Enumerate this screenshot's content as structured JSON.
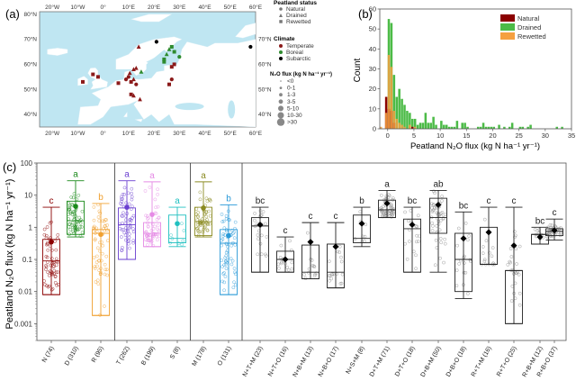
{
  "chart_data": [
    {
      "panel": "(a)",
      "type": "map",
      "lon_ticks": [
        "20°W",
        "10°W",
        "0°",
        "10°E",
        "20°E",
        "30°E",
        "40°E",
        "50°E",
        "60°E"
      ],
      "lat_ticks": [
        "80°N",
        "70°N",
        "60°N",
        "50°N",
        "40°N"
      ],
      "colors": {
        "ocean": "#bfe6f2",
        "land": "#ffffff",
        "temperate": "#8b1a1a",
        "boreal": "#2e8b2e",
        "subarctic": "#000000"
      },
      "legend": {
        "status_title": "Peatland status",
        "status": [
          "Natural",
          "Drained",
          "Rewetted"
        ],
        "climate_title": "Climate",
        "climate": [
          "Temperate",
          "Boreal",
          "Subarctic"
        ],
        "flux_title": "N₂O flux (kg N ha⁻¹ yr⁻¹)",
        "flux_classes": [
          "<0",
          "0-1",
          "1-3",
          "3-5",
          "5-10",
          "10-30",
          ">30"
        ]
      },
      "sites": [
        {
          "lon": -8,
          "lat": 53,
          "climate": "temperate",
          "shape": "square"
        },
        {
          "lon": -4,
          "lat": 56,
          "climate": "temperate",
          "shape": "square"
        },
        {
          "lon": -2,
          "lat": 55,
          "climate": "temperate",
          "shape": "square"
        },
        {
          "lon": 6,
          "lat": 52.5,
          "climate": "temperate",
          "shape": "square"
        },
        {
          "lon": 9,
          "lat": 54,
          "climate": "temperate",
          "shape": "circle"
        },
        {
          "lon": 10,
          "lat": 55,
          "climate": "temperate",
          "shape": "circle"
        },
        {
          "lon": 10.5,
          "lat": 56.5,
          "climate": "temperate",
          "shape": "triangle"
        },
        {
          "lon": 11,
          "lat": 53,
          "climate": "temperate",
          "shape": "square"
        },
        {
          "lon": 12,
          "lat": 54,
          "climate": "temperate",
          "shape": "triangle"
        },
        {
          "lon": 13,
          "lat": 52,
          "climate": "temperate",
          "shape": "circle"
        },
        {
          "lon": 11,
          "lat": 48,
          "climate": "temperate",
          "shape": "square"
        },
        {
          "lon": 12,
          "lat": 47.5,
          "climate": "temperate",
          "shape": "triangle"
        },
        {
          "lon": 14.5,
          "lat": 46,
          "climate": "temperate",
          "shape": "triangle"
        },
        {
          "lon": 12,
          "lat": 58,
          "climate": "temperate",
          "shape": "triangle"
        },
        {
          "lon": 13,
          "lat": 58.5,
          "climate": "temperate",
          "shape": "triangle"
        },
        {
          "lon": 14,
          "lat": 67,
          "climate": "temperate",
          "shape": "triangle"
        },
        {
          "lon": 15,
          "lat": 57,
          "climate": "boreal",
          "shape": "triangle"
        },
        {
          "lon": 24,
          "lat": 62,
          "climate": "boreal",
          "shape": "square"
        },
        {
          "lon": 25,
          "lat": 64,
          "climate": "boreal",
          "shape": "triangle"
        },
        {
          "lon": 26,
          "lat": 66,
          "climate": "boreal",
          "shape": "triangle"
        },
        {
          "lon": 27,
          "lat": 67,
          "climate": "boreal",
          "shape": "square"
        },
        {
          "lon": 28,
          "lat": 65,
          "climate": "boreal",
          "shape": "square"
        },
        {
          "lon": 24,
          "lat": 61,
          "climate": "boreal",
          "shape": "square"
        },
        {
          "lon": 30,
          "lat": 63,
          "climate": "boreal",
          "shape": "circle"
        },
        {
          "lon": 27,
          "lat": 59,
          "climate": "temperate",
          "shape": "square"
        },
        {
          "lon": 28,
          "lat": 60,
          "climate": "temperate",
          "shape": "square"
        },
        {
          "lon": 26,
          "lat": 52,
          "climate": "temperate",
          "shape": "square"
        },
        {
          "lon": 27,
          "lat": 54,
          "climate": "temperate",
          "shape": "circle"
        },
        {
          "lon": 21,
          "lat": 69,
          "climate": "subarctic",
          "shape": "circle"
        },
        {
          "lon": 58,
          "lat": 67,
          "climate": "subarctic",
          "shape": "circle"
        }
      ]
    },
    {
      "panel": "(b)",
      "type": "bar",
      "stacked": false,
      "xlabel": "Peatland N₂O flux (kg N ha⁻¹ yr⁻¹)",
      "ylabel": "Count",
      "xlim": [
        -1.5,
        35
      ],
      "ylim": [
        0,
        60
      ],
      "xticks": [
        0,
        5,
        10,
        15,
        20,
        25,
        30,
        35
      ],
      "yticks": [
        0,
        10,
        20,
        30,
        40,
        50,
        60
      ],
      "legend_position": "top-right",
      "bin_width": 0.5,
      "series": [
        {
          "name": "Natural",
          "color": "#8b0000",
          "bins": [
            [
              -0.5,
              16
            ],
            [
              0,
              10
            ],
            [
              0.5,
              9
            ],
            [
              1,
              3
            ],
            [
              4.5,
              1
            ]
          ]
        },
        {
          "name": "Drained",
          "color": "#4cbb47",
          "bins": [
            [
              0,
              55
            ],
            [
              0.5,
              53
            ],
            [
              1,
              27
            ],
            [
              1.5,
              16
            ],
            [
              2,
              20
            ],
            [
              2.5,
              15
            ],
            [
              3,
              12
            ],
            [
              3.5,
              9
            ],
            [
              4,
              8
            ],
            [
              4.5,
              5
            ],
            [
              5,
              5
            ],
            [
              5.5,
              2
            ],
            [
              6,
              3
            ],
            [
              6.5,
              3
            ],
            [
              7,
              8
            ],
            [
              7.5,
              3
            ],
            [
              8,
              3
            ],
            [
              8.5,
              6
            ],
            [
              9,
              2
            ],
            [
              10,
              4
            ],
            [
              10.5,
              2
            ],
            [
              11,
              2
            ],
            [
              11.5,
              1
            ],
            [
              12,
              1
            ],
            [
              12.5,
              1
            ],
            [
              13,
              4
            ],
            [
              14,
              3
            ],
            [
              14.5,
              3
            ],
            [
              15,
              1
            ],
            [
              17,
              1
            ],
            [
              17.5,
              1
            ],
            [
              18,
              3
            ],
            [
              18.5,
              1
            ],
            [
              19,
              1
            ],
            [
              19.5,
              1
            ],
            [
              20,
              1
            ],
            [
              21,
              2
            ],
            [
              22,
              1
            ],
            [
              23,
              1
            ],
            [
              23.5,
              3
            ],
            [
              25,
              1
            ],
            [
              25.5,
              1
            ],
            [
              26.5,
              1
            ],
            [
              27,
              2
            ],
            [
              32,
              1
            ],
            [
              33,
              1
            ]
          ]
        },
        {
          "name": "Rewetted",
          "color": "#f5a040",
          "bins": [
            [
              -1.5,
              1
            ],
            [
              -0.5,
              8
            ],
            [
              0,
              37
            ],
            [
              0.5,
              31
            ],
            [
              1,
              9
            ],
            [
              1.5,
              5
            ],
            [
              2,
              3
            ],
            [
              2.5,
              2
            ],
            [
              3,
              1
            ],
            [
              4,
              2
            ],
            [
              5,
              1
            ]
          ]
        }
      ]
    },
    {
      "panel": "(c)",
      "type": "box",
      "ylabel": "Peatland N₂O flux (kg N ha⁻¹ yr⁻¹)",
      "yscale": "log",
      "ylim": [
        0.0003,
        100
      ],
      "yticks": [
        "0.001",
        "0.01",
        "0.1",
        "1",
        "10",
        "100"
      ],
      "groups": [
        {
          "label": "N (74)",
          "color": "#8b0000",
          "letter": "c",
          "min": 0.008,
          "q1": 0.008,
          "median": 0.09,
          "q3": 0.42,
          "max": 4.2,
          "mean": 0.35
        },
        {
          "label": "D (310)",
          "color": "#1a8a1a",
          "letter": "a",
          "min": 0.5,
          "q1": 0.6,
          "median": 1.6,
          "q3": 6.5,
          "max": 28,
          "mean": 4.5
        },
        {
          "label": "R (95)",
          "color": "#f0a030",
          "letter": "b",
          "min": 0.0018,
          "q1": 0.0018,
          "median": 0.65,
          "q3": 0.85,
          "max": 5.5,
          "mean": 0.6
        },
        {
          "label": "T (262)",
          "color": "#6a3fd0",
          "letter": "a",
          "min": 0.1,
          "q1": 0.1,
          "median": 1.2,
          "q3": 4,
          "max": 28,
          "mean": 4.2
        },
        {
          "label": "B (199)",
          "color": "#e58ae5",
          "letter": "a",
          "min": 0.25,
          "q1": 0.25,
          "median": 0.65,
          "q3": 1.4,
          "max": 26,
          "mean": 2.5
        },
        {
          "label": "S (8)",
          "color": "#20c0c0",
          "letter": "a",
          "min": 0.25,
          "q1": 0.33,
          "median": 0.45,
          "q3": 2.4,
          "max": 4.2,
          "mean": 1.3
        },
        {
          "label": "M (178)",
          "color": "#8a8a20",
          "letter": "a",
          "min": 0.5,
          "q1": 0.55,
          "median": 1.5,
          "q3": 4.2,
          "max": 26,
          "mean": 4
        },
        {
          "label": "O (131)",
          "color": "#2a9ad8",
          "letter": "b",
          "min": 0.008,
          "q1": 0.008,
          "median": 0.32,
          "q3": 0.85,
          "max": 5,
          "mean": 0.55
        },
        {
          "label": "N+T+M (23)",
          "color": "#222222",
          "letter": "bc",
          "min": 0.04,
          "q1": 0.04,
          "median": 1.1,
          "q3": 2,
          "max": 4.2,
          "mean": 1.2
        },
        {
          "label": "N+T+O (16)",
          "color": "#222222",
          "letter": "c",
          "min": 0.04,
          "q1": 0.04,
          "median": 0.1,
          "q3": 0.18,
          "max": 0.5,
          "mean": 0.1
        },
        {
          "label": "N+B+M (13)",
          "color": "#222222",
          "letter": "c",
          "min": 0.025,
          "q1": 0.025,
          "median": 0.04,
          "q3": 0.28,
          "max": 1.4,
          "mean": 0.35
        },
        {
          "label": "N+B+O (17)",
          "color": "#222222",
          "letter": "c",
          "min": 0.013,
          "q1": 0.013,
          "median": 0.04,
          "q3": 0.3,
          "max": 1.4,
          "mean": 0.25
        },
        {
          "label": "N+S+M (8)",
          "color": "#222222",
          "letter": "b",
          "min": 0.25,
          "q1": 0.33,
          "median": 0.45,
          "q3": 2.4,
          "max": 4.2,
          "mean": 1.3
        },
        {
          "label": "D+T+M (71)",
          "color": "#222222",
          "letter": "a",
          "min": 2,
          "q1": 2,
          "median": 3.5,
          "q3": 7,
          "max": 14,
          "mean": 5.5
        },
        {
          "label": "D+T+O (18)",
          "color": "#222222",
          "letter": "bc",
          "min": 0.04,
          "q1": 0.04,
          "median": 0.9,
          "q3": 1.8,
          "max": 4.2,
          "mean": 1.2
        },
        {
          "label": "D+B+M (50)",
          "color": "#222222",
          "letter": "ab",
          "min": 0.04,
          "q1": 0.65,
          "median": 2,
          "q3": 8,
          "max": 14,
          "mean": 5
        },
        {
          "label": "D+B+O (18)",
          "color": "#222222",
          "letter": "bc",
          "min": 0.006,
          "q1": 0.01,
          "median": 0.1,
          "q3": 0.65,
          "max": 3,
          "mean": 0.45
        },
        {
          "label": "R+T+M (16)",
          "color": "#222222",
          "letter": "c",
          "min": 0.07,
          "q1": 0.07,
          "median": 0.07,
          "q3": 1,
          "max": 4.2,
          "mean": 0.7
        },
        {
          "label": "R+T+O (25)",
          "color": "#222222",
          "letter": "c",
          "min": 0.001,
          "q1": 0.001,
          "median": 0.045,
          "q3": 0.045,
          "max": 4.2,
          "mean": 0.27
        },
        {
          "label": "R+B+M (12)",
          "color": "#222222",
          "letter": "bc",
          "min": 0.3,
          "q1": 0.3,
          "median": 0.6,
          "q3": 0.6,
          "max": 1,
          "mean": 0.5
        },
        {
          "label": "R+B+O (37)",
          "color": "#222222",
          "letter": "c",
          "min": 0.4,
          "q1": 0.55,
          "median": 0.75,
          "q3": 0.9,
          "max": 1.8,
          "mean": 0.8
        }
      ],
      "separators_after": [
        "R (95)",
        "S (8)",
        "O (131)"
      ]
    }
  ]
}
